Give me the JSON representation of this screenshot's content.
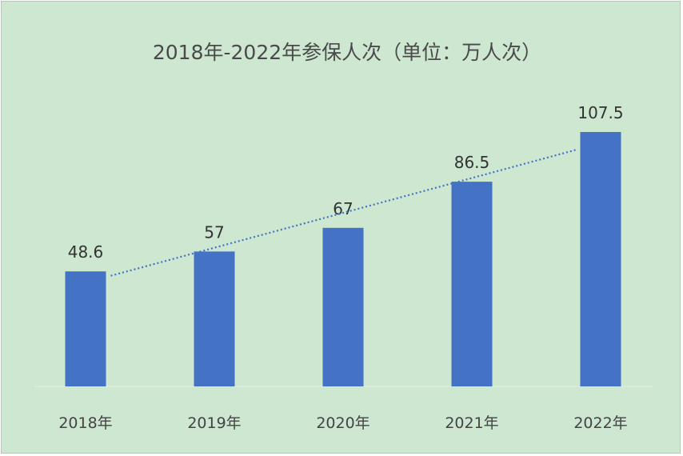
{
  "colors": {
    "background": "#cde7d0",
    "bar": "#4472c4",
    "trendline": "#4472c4",
    "baseline": "#e4efe5"
  },
  "chart_data": {
    "type": "bar",
    "title": "2018年-2022年参保人次（单位：万人次）",
    "categories": [
      "2018年",
      "2019年",
      "2020年",
      "2021年",
      "2022年"
    ],
    "values": [
      48.6,
      57,
      67,
      86.5,
      107.5
    ],
    "data_labels": [
      "48.6",
      "57",
      "67",
      "86.5",
      "107.5"
    ],
    "ylim": [
      0,
      107.5
    ],
    "trendline": "linear",
    "grid": false,
    "legend": false
  }
}
